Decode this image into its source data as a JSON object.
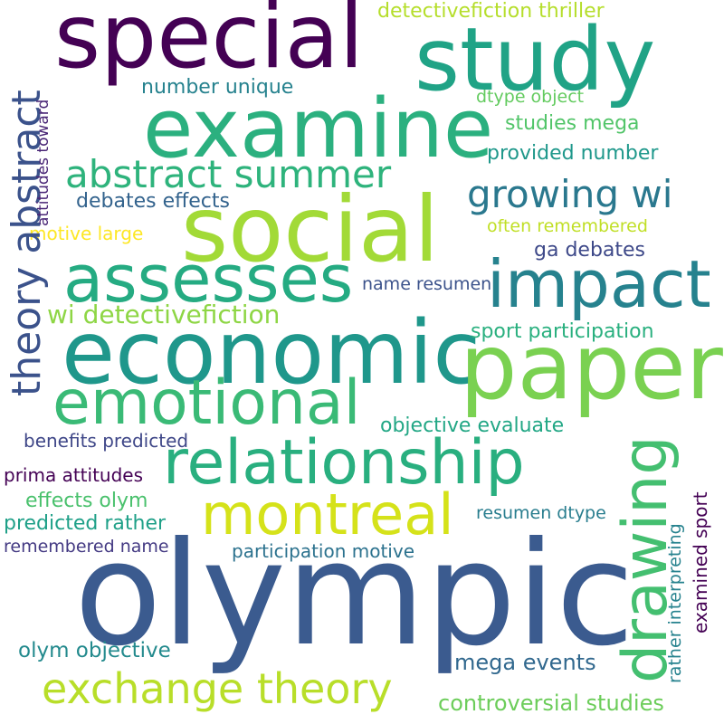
{
  "background": "#ffffff",
  "words": [
    {
      "text": "olympic",
      "color": "#3b5b8f"
    },
    {
      "text": "special",
      "color": "#440154"
    },
    {
      "text": "study",
      "color": "#20a386"
    },
    {
      "text": "examine",
      "color": "#2bb07f"
    },
    {
      "text": "social",
      "color": "#a2da37"
    },
    {
      "text": "economic",
      "color": "#1f978b"
    },
    {
      "text": "paper",
      "color": "#7ad151"
    },
    {
      "text": "assesses",
      "color": "#25ab82"
    },
    {
      "text": "impact",
      "color": "#26828e"
    },
    {
      "text": "relationship",
      "color": "#29af7f"
    },
    {
      "text": "emotional",
      "color": "#3aba76"
    },
    {
      "text": "montreal",
      "color": "#d5e21a"
    },
    {
      "text": "abstract summer",
      "color": "#2eb37c"
    },
    {
      "text": "growing wi",
      "color": "#2a788e"
    },
    {
      "text": "exchange theory",
      "color": "#b8de29"
    },
    {
      "text": "theory abstract",
      "color": "#3b528b"
    },
    {
      "text": "drawing",
      "color": "#44bf70"
    },
    {
      "text": "wi detectivefiction",
      "color": "#8ed645"
    },
    {
      "text": "detectivefiction thriller",
      "color": "#b5de2b"
    },
    {
      "text": "number unique",
      "color": "#26828e"
    },
    {
      "text": "dtype object",
      "color": "#63cb5f"
    },
    {
      "text": "studies mega",
      "color": "#52c569"
    },
    {
      "text": "provided number",
      "color": "#1f988b"
    },
    {
      "text": "debates effects",
      "color": "#33638d"
    },
    {
      "text": "often remembered",
      "color": "#c0df25"
    },
    {
      "text": "motive large",
      "color": "#fde725"
    },
    {
      "text": "ga debates",
      "color": "#3e4989"
    },
    {
      "text": "name resumen",
      "color": "#3b528b"
    },
    {
      "text": "sport participation",
      "color": "#2ab07f"
    },
    {
      "text": "objective evaluate",
      "color": "#22a785"
    },
    {
      "text": "benefits predicted",
      "color": "#3f4788"
    },
    {
      "text": "prima attitudes",
      "color": "#440154"
    },
    {
      "text": "effects olym",
      "color": "#4ac16d"
    },
    {
      "text": "resumen dtype",
      "color": "#287d8e"
    },
    {
      "text": "predicted rather",
      "color": "#1fa088"
    },
    {
      "text": "remembered name",
      "color": "#443a83"
    },
    {
      "text": "participation motive",
      "color": "#2c728e"
    },
    {
      "text": "olym objective",
      "color": "#238a8d"
    },
    {
      "text": "mega events",
      "color": "#31688e"
    },
    {
      "text": "controversial studies",
      "color": "#6ccd5a"
    },
    {
      "text": "attitudes toward",
      "color": "#482475"
    },
    {
      "text": "examined sport",
      "color": "#440154"
    },
    {
      "text": "rather interpreting",
      "color": "#26828e"
    }
  ]
}
